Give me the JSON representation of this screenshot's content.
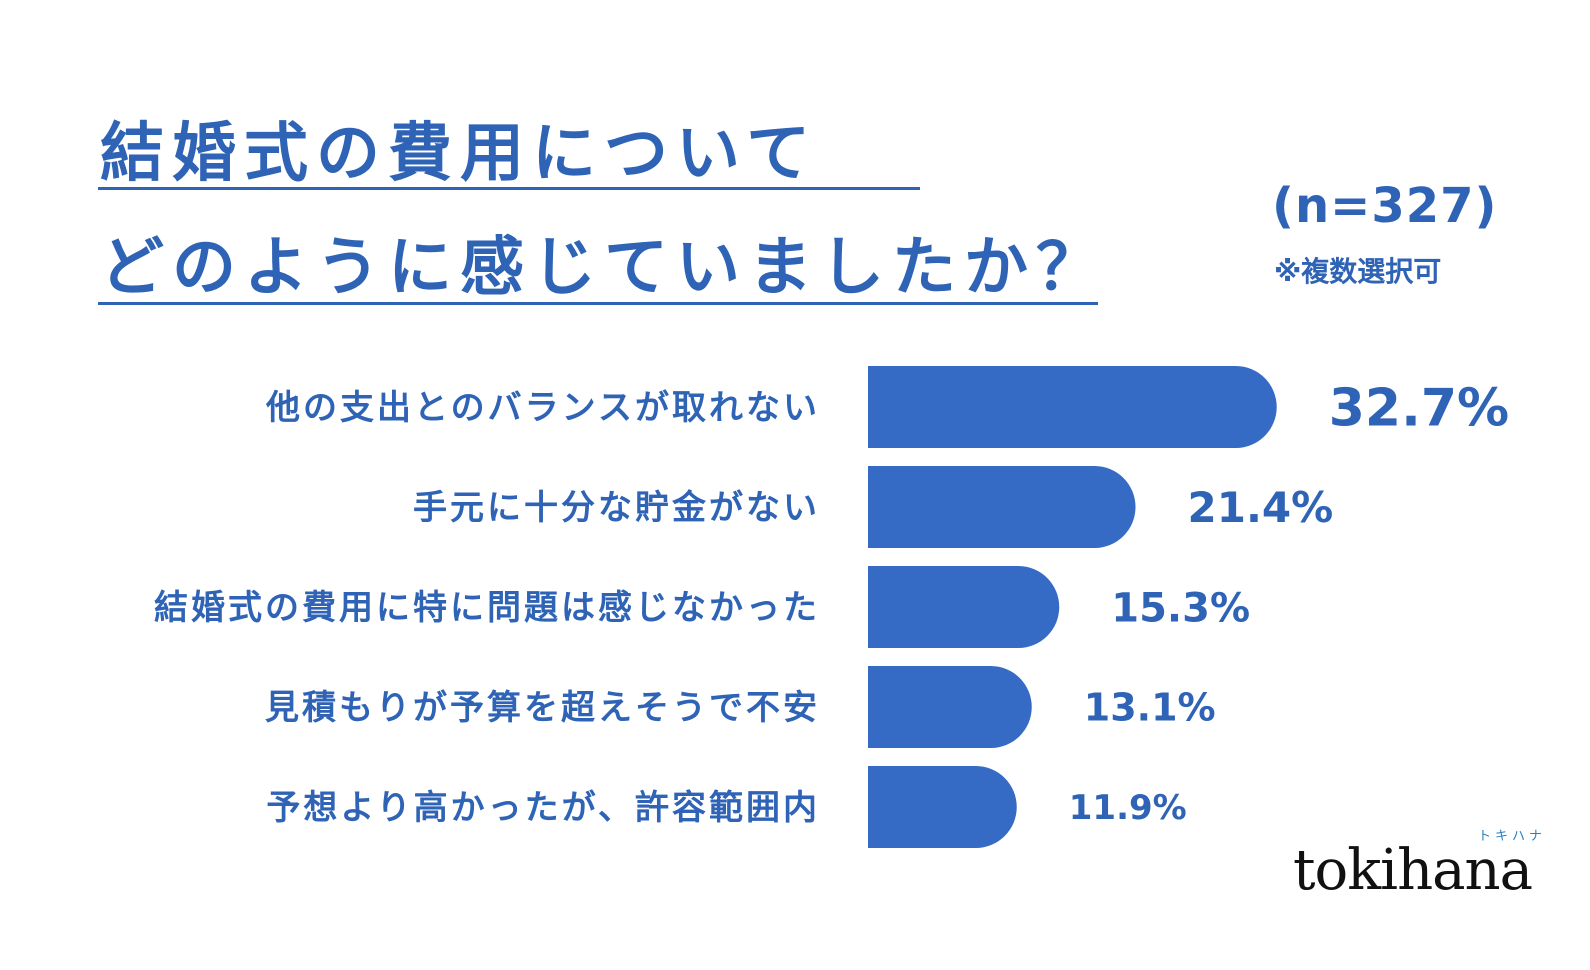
{
  "title": [
    "結婚式の費用について",
    "どのように感じていましたか？"
  ],
  "sample_size": "(n=327)",
  "sample_note": "※複数選択可",
  "logo": {
    "text": "tokihana",
    "kana": "トキハナ"
  },
  "colors": {
    "accent": "#2f63b6",
    "bar": "#356bc4",
    "logo": "#111111"
  },
  "chart_data": {
    "type": "bar",
    "orientation": "horizontal",
    "categories": [
      "他の支出とのバランスが取れない",
      "手元に十分な貯金がない",
      "結婚式の費用に特に問題は感じなかった",
      "見積もりが予算を超えそうで不安",
      "予想より高かったが、許容範囲内"
    ],
    "values": [
      32.7,
      21.4,
      15.3,
      13.1,
      11.9
    ],
    "value_labels": [
      "32.7%",
      "21.4%",
      "15.3%",
      "13.1%",
      "11.9%"
    ],
    "unit": "%",
    "title": "結婚式の費用について どのように感じていましたか？",
    "xlabel": "",
    "ylabel": "",
    "grid": false,
    "legend": "none"
  }
}
